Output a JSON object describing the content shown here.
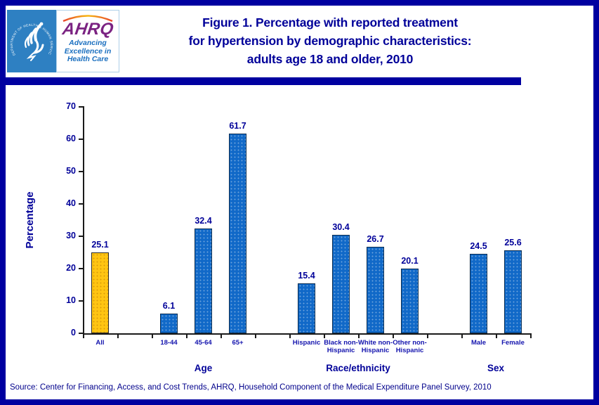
{
  "header": {
    "logo": {
      "hhs_seal_text": "DEPARTMENT OF HEALTH & HUMAN SERVICES • USA",
      "ahrq_acronym": "AHRQ",
      "ahrq_tagline": "Advancing\nExcellence in\nHealth Care"
    },
    "title_lines": [
      "Figure 1. Percentage with reported treatment",
      "for hypertension by demographic characteristics:",
      "adults age 18 and older, 2010"
    ]
  },
  "chart_data": {
    "type": "bar",
    "title": "Percentage with reported treatment for hypertension by demographic characteristics, adults age 18 and older, 2010",
    "xlabel": "",
    "ylabel": "Percentage",
    "ylim": [
      0,
      70
    ],
    "yticks": [
      0,
      10,
      20,
      30,
      40,
      50,
      60,
      70
    ],
    "grid": false,
    "legend_position": "none",
    "slots": 13,
    "bars": [
      {
        "category": "All",
        "label": "All",
        "value": 25.1,
        "value_label": "25.1",
        "slot": 0,
        "variant": "highlight",
        "group": null
      },
      {
        "category": "18-44",
        "label": "18-44",
        "value": 6.1,
        "value_label": "6.1",
        "slot": 2,
        "variant": "default",
        "group": "Age"
      },
      {
        "category": "45-64",
        "label": "45-64",
        "value": 32.4,
        "value_label": "32.4",
        "slot": 3,
        "variant": "default",
        "group": "Age"
      },
      {
        "category": "65+",
        "label": "65+",
        "value": 61.7,
        "value_label": "61.7",
        "slot": 4,
        "variant": "default",
        "group": "Age"
      },
      {
        "category": "Hispanic",
        "label": "Hispanic",
        "value": 15.4,
        "value_label": "15.4",
        "slot": 6,
        "variant": "default",
        "group": "Race/ethnicity"
      },
      {
        "category": "Black non-Hispanic",
        "label": "Black non-\nHispanic",
        "value": 30.4,
        "value_label": "30.4",
        "slot": 7,
        "variant": "default",
        "group": "Race/ethnicity"
      },
      {
        "category": "White non-Hispanic",
        "label": "White non-\nHispanic",
        "value": 26.7,
        "value_label": "26.7",
        "slot": 8,
        "variant": "default",
        "group": "Race/ethnicity"
      },
      {
        "category": "Other non-Hispanic",
        "label": "Other non-\nHispanic",
        "value": 20.1,
        "value_label": "20.1",
        "slot": 9,
        "variant": "default",
        "group": "Race/ethnicity"
      },
      {
        "category": "Male",
        "label": "Male",
        "value": 24.5,
        "value_label": "24.5",
        "slot": 11,
        "variant": "default",
        "group": "Sex"
      },
      {
        "category": "Female",
        "label": "Female",
        "value": 25.6,
        "value_label": "25.6",
        "slot": 12,
        "variant": "default",
        "group": "Sex"
      }
    ],
    "groups": [
      {
        "label": "Age",
        "start_slot": 2,
        "end_slot": 4
      },
      {
        "label": "Race/ethnicity",
        "start_slot": 6,
        "end_slot": 9
      },
      {
        "label": "Sex",
        "start_slot": 11,
        "end_slot": 12
      }
    ]
  },
  "footer": {
    "source": "Source: Center for Financing, Access, and Cost Trends, AHRQ, Household Component of the Medical Expenditure Panel Survey, 2010"
  },
  "colors": {
    "page_border": "#0000A0",
    "title_navy": "#000099",
    "bar_blue": "#1169C8",
    "bar_blue_border": "#0a2d52",
    "bar_gold": "#FFC512",
    "bar_gold_border": "#2a2a2a",
    "hhs_blue": "#2E80C2",
    "ahrq_purple": "#7B2382",
    "ahrq_blue": "#1A6FBF"
  }
}
